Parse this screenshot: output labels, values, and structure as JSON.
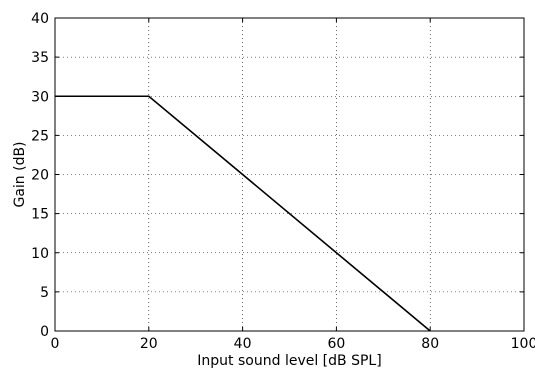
{
  "chart_data": {
    "type": "line",
    "title": "",
    "xlabel": "Input sound level [dB SPL]",
    "ylabel": "Gain (dB)",
    "xlim": [
      0,
      100
    ],
    "ylim": [
      0,
      40
    ],
    "xticks": [
      0,
      20,
      40,
      60,
      80,
      100
    ],
    "yticks": [
      0,
      5,
      10,
      15,
      20,
      25,
      30,
      35,
      40
    ],
    "xtick_labels": [
      "0",
      "20",
      "40",
      "60",
      "80",
      "100"
    ],
    "ytick_labels": [
      "0",
      "5",
      "10",
      "15",
      "20",
      "25",
      "30",
      "35",
      "40"
    ],
    "grid": true,
    "legend": false,
    "series": [
      {
        "x": [
          0,
          20,
          80
        ],
        "y": [
          30,
          30,
          0
        ],
        "color": "#000000"
      }
    ]
  }
}
